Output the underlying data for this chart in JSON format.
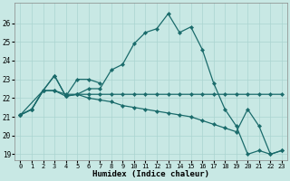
{
  "xlabel": "Humidex (Indice chaleur)",
  "bg_color": "#c8e8e4",
  "grid_color": "#aad4d0",
  "line_color": "#1a6b6b",
  "xlim": [
    -0.5,
    23.5
  ],
  "ylim": [
    18.7,
    27.1
  ],
  "yticks": [
    19,
    20,
    21,
    22,
    23,
    24,
    25,
    26
  ],
  "xticks": [
    0,
    1,
    2,
    3,
    4,
    5,
    6,
    7,
    8,
    9,
    10,
    11,
    12,
    13,
    14,
    15,
    16,
    17,
    18,
    19,
    20,
    21,
    22,
    23
  ],
  "series": [
    {
      "x": [
        0,
        1,
        2,
        3,
        4,
        5,
        6,
        7,
        8,
        9,
        10,
        11,
        12,
        13,
        14,
        15,
        16,
        17,
        18,
        19,
        20,
        21,
        22,
        23
      ],
      "y": [
        21.1,
        21.4,
        22.4,
        22.4,
        22.1,
        22.2,
        22.5,
        22.5,
        23.5,
        23.8,
        24.9,
        25.5,
        25.7,
        26.5,
        25.5,
        25.8,
        24.6,
        22.8,
        21.4,
        20.5,
        19.0,
        19.2,
        19.0,
        19.2
      ]
    },
    {
      "x": [
        0,
        1,
        2,
        3,
        4,
        5,
        6,
        7,
        8,
        9,
        10,
        11,
        12,
        13,
        14,
        15,
        16,
        17,
        18,
        19,
        20,
        21,
        22,
        23
      ],
      "y": [
        21.1,
        21.4,
        22.4,
        22.4,
        22.2,
        22.2,
        22.2,
        22.2,
        22.2,
        22.2,
        22.2,
        22.2,
        22.2,
        22.2,
        22.2,
        22.2,
        22.2,
        22.2,
        22.2,
        22.2,
        22.2,
        22.2,
        22.2,
        22.2
      ]
    },
    {
      "x": [
        0,
        1,
        2,
        3,
        4,
        5,
        6,
        7,
        8,
        9,
        10,
        11,
        12,
        13,
        14,
        15,
        16,
        17,
        18,
        19,
        20,
        21,
        22,
        23
      ],
      "y": [
        21.1,
        21.4,
        22.4,
        23.2,
        22.1,
        22.2,
        22.0,
        21.9,
        21.8,
        21.6,
        21.5,
        21.4,
        21.3,
        21.2,
        21.1,
        21.0,
        20.8,
        20.6,
        20.4,
        20.2,
        21.4,
        20.5,
        19.0,
        19.2
      ]
    },
    {
      "x": [
        0,
        2,
        3,
        4,
        5,
        6,
        7
      ],
      "y": [
        21.1,
        22.4,
        23.2,
        22.1,
        23.0,
        23.0,
        22.8
      ]
    }
  ]
}
